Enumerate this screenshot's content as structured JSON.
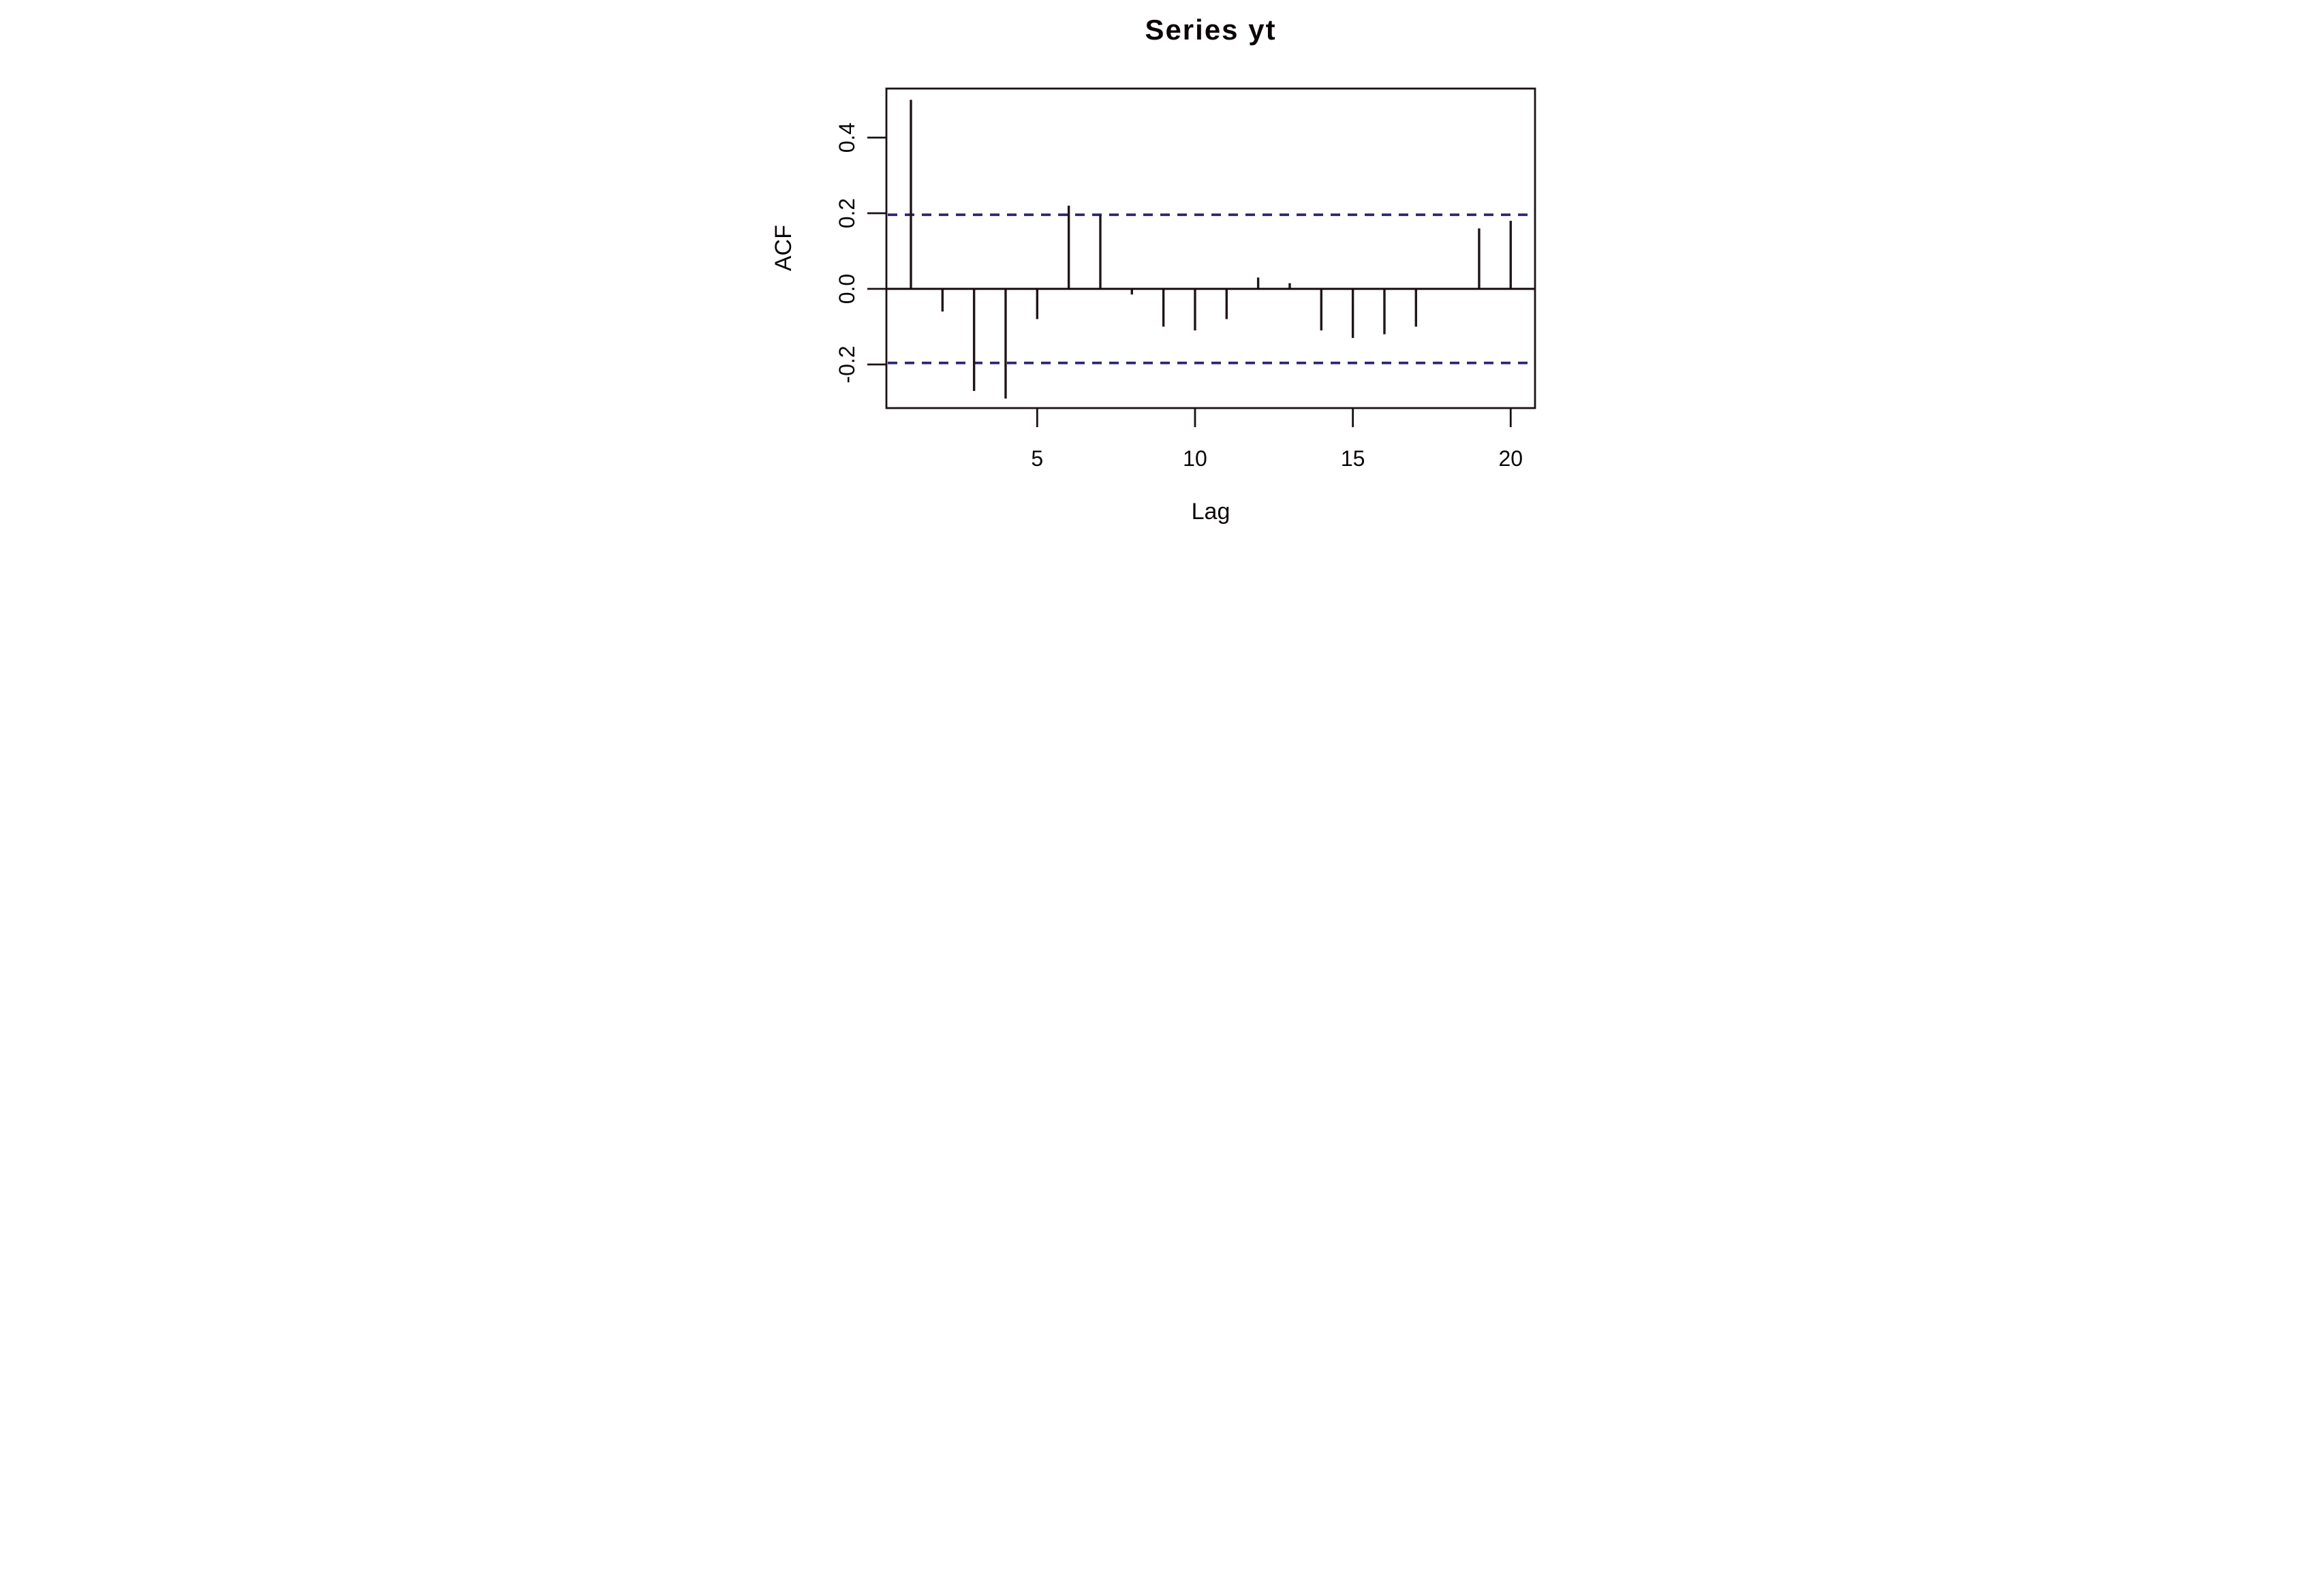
{
  "chart_data": {
    "type": "bar",
    "title": "Series yt",
    "xlabel": "Lag",
    "ylabel": "ACF",
    "x": [
      1,
      2,
      3,
      4,
      5,
      6,
      7,
      8,
      9,
      10,
      11,
      12,
      13,
      14,
      15,
      16,
      17,
      18,
      19,
      20
    ],
    "values": [
      0.5,
      -0.06,
      -0.27,
      -0.29,
      -0.08,
      0.22,
      0.195,
      -0.015,
      -0.1,
      -0.11,
      -0.08,
      0.03,
      0.015,
      -0.11,
      -0.13,
      -0.12,
      -0.1,
      0.0,
      0.16,
      0.18
    ],
    "confidence_interval": 0.196,
    "ci_line_style": "dashed",
    "ci_line_color": "#2b2670",
    "bar_color": "#201519",
    "background_color": "#ffffff",
    "xlim": [
      0.24,
      20.76
    ],
    "ylim": [
      -0.315,
      0.527
    ],
    "grid": false,
    "legend": "none",
    "x_ticks": {
      "lags": [
        5,
        10,
        15,
        20
      ],
      "labels": [
        "5",
        "10",
        "15",
        "20"
      ]
    },
    "y_ticks": {
      "values": [
        0.4,
        0.2,
        0.0,
        -0.2
      ],
      "labels": [
        "0.4",
        "0.2",
        "0.0",
        "-0.2"
      ]
    }
  }
}
